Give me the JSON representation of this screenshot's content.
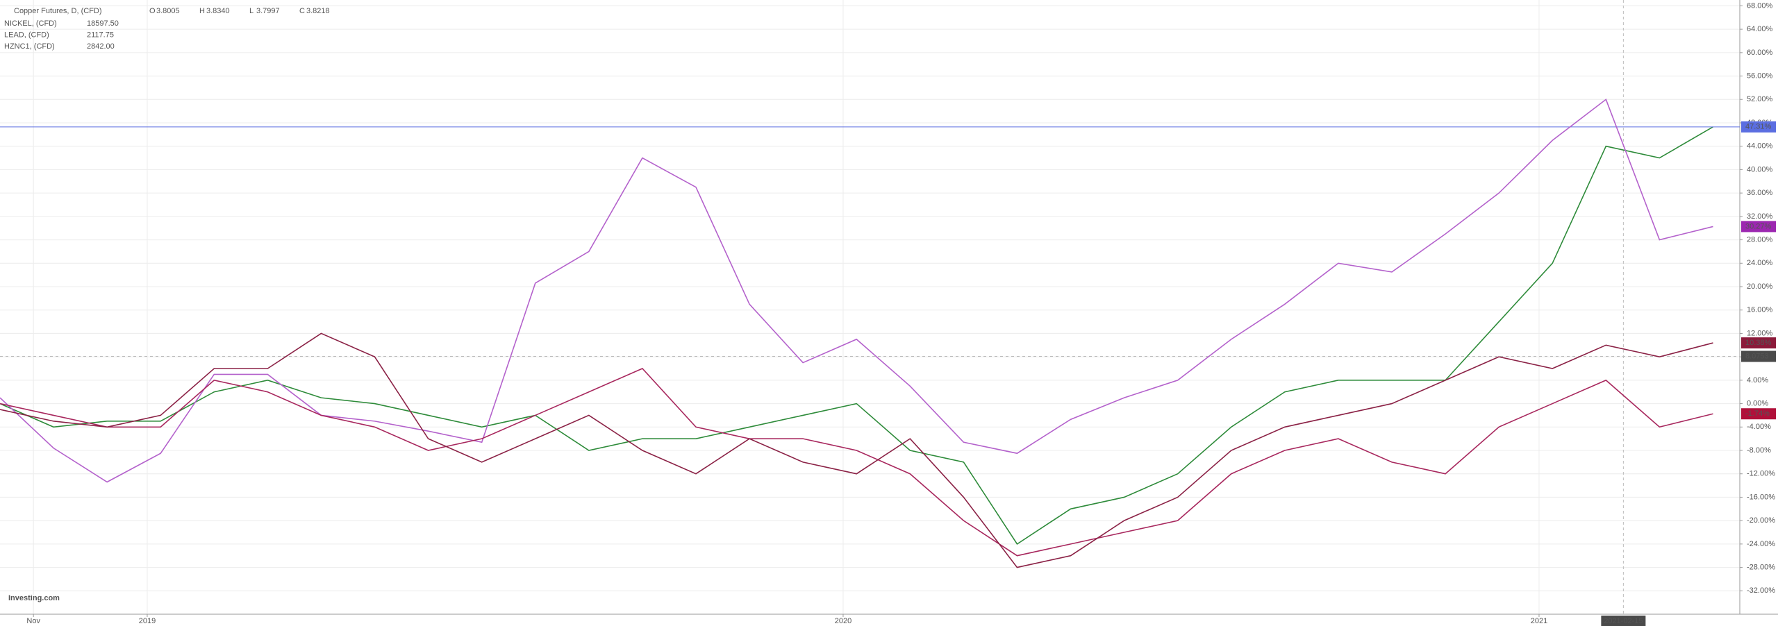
{
  "chart_data": {
    "type": "line",
    "title": "Copper Futures, D, (CFD)",
    "ohlc": [
      {
        "label": "O",
        "value": 3.8005
      },
      {
        "label": "H",
        "value": 3.834
      },
      {
        "label": "L",
        "value": 3.7997
      },
      {
        "label": "C",
        "value": 3.8218
      }
    ],
    "ohlc_labels": [
      "3.8005",
      "3.8340",
      "3.7997",
      "3.8218"
    ],
    "brand": "Investing.com",
    "x": [
      0,
      4,
      8,
      12,
      16,
      20,
      24,
      28,
      32,
      36,
      40,
      44,
      48,
      52,
      56,
      60,
      64,
      68,
      72,
      76,
      80,
      84,
      88,
      92,
      96,
      100,
      104,
      108,
      112,
      116,
      120,
      124,
      128
    ],
    "xlim": [
      0,
      130
    ],
    "xticks": [
      {
        "value": 2.5,
        "label": "Nov"
      },
      {
        "value": 11,
        "label": "2019"
      },
      {
        "value": 63,
        "label": "2020"
      },
      {
        "value": 115,
        "label": "2021"
      }
    ],
    "ylim": [
      -36,
      69
    ],
    "yticks": [
      {
        "value": -32,
        "label": "-32.00%"
      },
      {
        "value": -28,
        "label": "-28.00%"
      },
      {
        "value": -24,
        "label": "-24.00%"
      },
      {
        "value": -20,
        "label": "-20.00%"
      },
      {
        "value": -16,
        "label": "-16.00%"
      },
      {
        "value": -12,
        "label": "-12.00%"
      },
      {
        "value": -8,
        "label": "-8.00%"
      },
      {
        "value": -4,
        "label": "-4.00%"
      },
      {
        "value": 0,
        "label": "0.00%"
      },
      {
        "value": 4,
        "label": "4.00%"
      },
      {
        "value": 8,
        "label": "8.00%"
      },
      {
        "value": 12,
        "label": "12.00%"
      },
      {
        "value": 16,
        "label": "16.00%"
      },
      {
        "value": 20,
        "label": "20.00%"
      },
      {
        "value": 24,
        "label": "24.00%"
      },
      {
        "value": 28,
        "label": "28.00%"
      },
      {
        "value": 32,
        "label": "32.00%"
      },
      {
        "value": 36,
        "label": "36.00%"
      },
      {
        "value": 40,
        "label": "40.00%"
      },
      {
        "value": 44,
        "label": "44.00%"
      },
      {
        "value": 48,
        "label": "48.00%"
      },
      {
        "value": 52,
        "label": "52.00%"
      },
      {
        "value": 56,
        "label": "56.00%"
      },
      {
        "value": 60,
        "label": "60.00%"
      },
      {
        "value": 64,
        "label": "64.00%"
      },
      {
        "value": 68,
        "label": "68.00%"
      }
    ],
    "grid": true,
    "crosshair": {
      "x": {
        "value": 121.3,
        "label": "2021-02-15"
      },
      "y": 8.0753
    },
    "series": [
      {
        "name": "Copper Futures, D, (CFD)",
        "color": "#2e8b3a",
        "label_color": "#5b6ee1",
        "price_line": true,
        "last_label": "47.31%",
        "values": [
          0,
          -4,
          -3,
          -3,
          2,
          4,
          1,
          0,
          -2,
          -4,
          -2,
          -8,
          -6,
          -6,
          -4,
          -2,
          0,
          -8,
          -10,
          -24,
          -18,
          -16,
          -12,
          -4,
          2,
          4,
          4,
          4,
          14,
          24,
          44,
          42,
          47.31
        ]
      },
      {
        "name": "NICKEL, (CFD)",
        "header_value": "18597.50",
        "color": "#b462cc",
        "label_color": "#9c27b0",
        "last_label": "30.27%",
        "values": [
          1,
          -7.6,
          -13.4,
          -8.5,
          5,
          5,
          -2,
          -3,
          -4.7,
          -6.6,
          20.6,
          26,
          42,
          37,
          17,
          7,
          11,
          3,
          -6.6,
          -8.5,
          -2.7,
          1,
          4,
          11,
          17,
          24,
          22.5,
          29,
          36,
          45,
          52,
          28,
          30.27
        ]
      },
      {
        "name": "LEAD, (CFD)",
        "header_value": "2117.75",
        "color": "#a8285e",
        "label_color": "#b0103a",
        "last_label": "-1.74%",
        "values": [
          0,
          -2,
          -4,
          -4,
          4,
          2,
          -2,
          -4,
          -8,
          -6,
          -2,
          2,
          6,
          -4,
          -6,
          -6,
          -8,
          -12,
          -20,
          -26,
          -24,
          -22,
          -20,
          -12,
          -8,
          -6,
          -10,
          -12,
          -4,
          0,
          4,
          -4,
          -1.74
        ]
      },
      {
        "name": "HZNC1, (CFD)",
        "header_value": "2842.00",
        "color": "#8b2246",
        "label_color": "#8b1a3a",
        "last_label": "10.38%",
        "values": [
          -1,
          -3,
          -4,
          -2,
          6,
          6,
          12,
          8,
          -6,
          -10,
          -6,
          -2,
          -8,
          -12,
          -6,
          -10,
          -12,
          -6,
          -16,
          -28,
          -26,
          -20,
          -16,
          -8,
          -4,
          -2,
          0,
          4,
          8,
          6,
          10,
          8,
          10.38
        ]
      }
    ]
  }
}
